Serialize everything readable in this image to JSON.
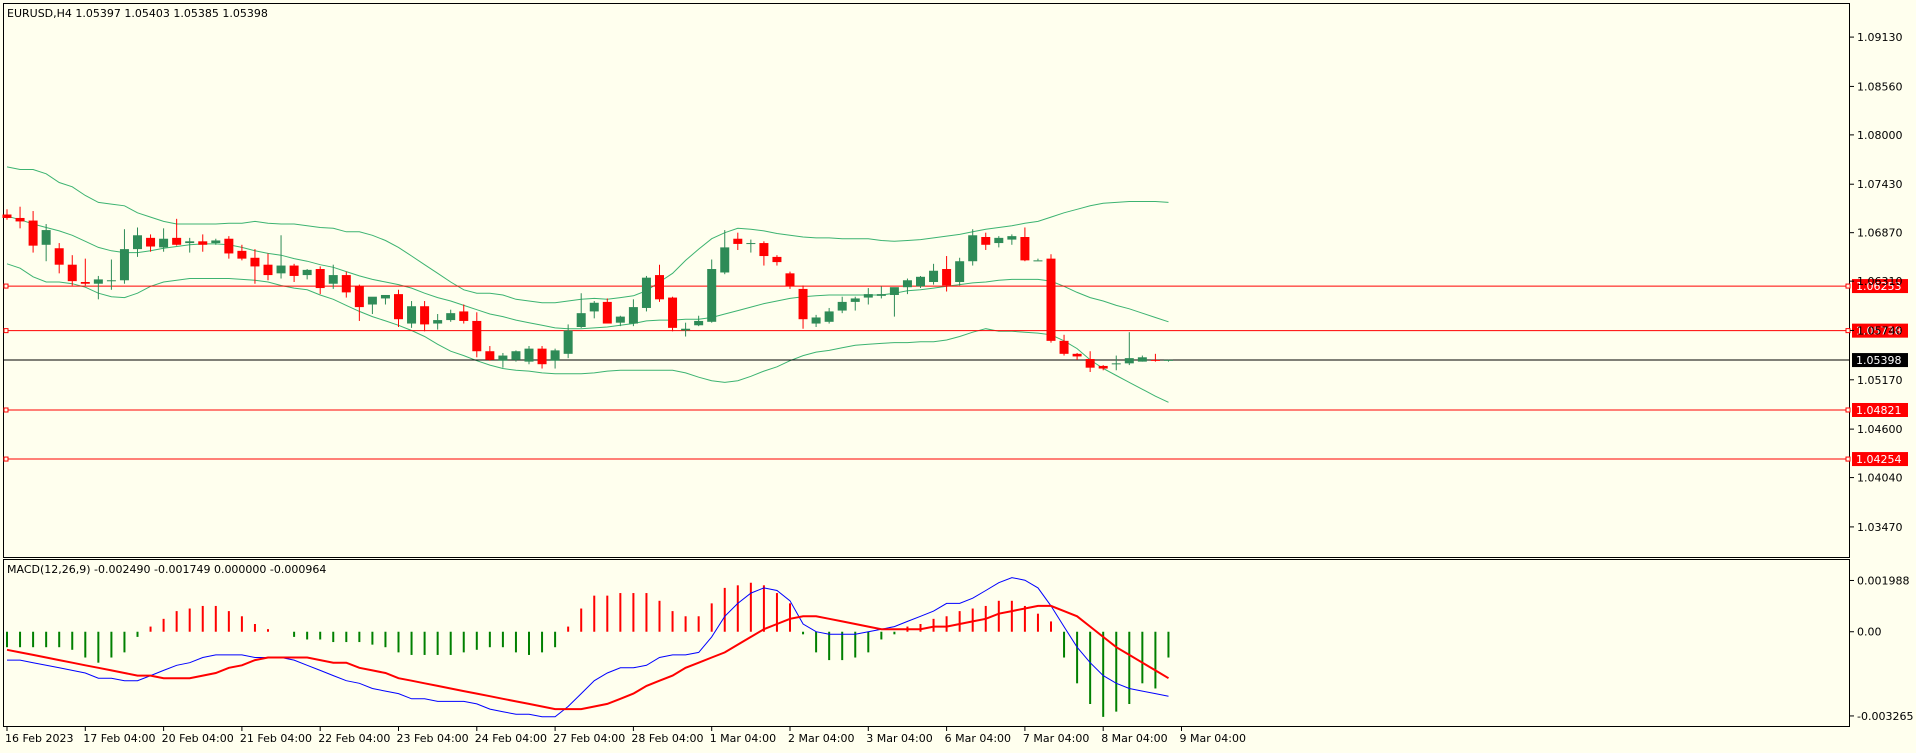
{
  "colors": {
    "background": "#ffffee",
    "frame": "#000000",
    "bull_candle": "#2e8b57",
    "bear_candle": "#ff0000",
    "bollinger": "#3cb371",
    "level_line": "#ff0000",
    "current_price_line": "#000000",
    "macd_line": "#0000ff",
    "signal_line": "#ff0000",
    "hist_pos": "#ff0000",
    "hist_neg": "#008000"
  },
  "chart_data": [
    {
      "type": "candlestick",
      "title": "EURUSD,H4  1.05397 1.05403 1.05385 1.05398",
      "ylim": [
        1.0318,
        1.0942
      ],
      "yticks": [
        "1.09130",
        "1.08560",
        "1.08000",
        "1.07430",
        "1.06870",
        "1.06310",
        "1.05740",
        "1.05170",
        "1.04600",
        "1.04040",
        "1.03470"
      ],
      "xtick_labels": [
        "16 Feb 2023",
        "17 Feb 04:00",
        "20 Feb 04:00",
        "21 Feb 04:00",
        "22 Feb 04:00",
        "23 Feb 04:00",
        "24 Feb 04:00",
        "27 Feb 04:00",
        "28 Feb 04:00",
        "1 Mar 04:00",
        "2 Mar 04:00",
        "3 Mar 04:00",
        "6 Mar 04:00",
        "7 Mar 04:00",
        "8 Mar 04:00",
        "9 Mar 04:00"
      ],
      "xtick_bar_index": [
        0,
        6,
        12,
        18,
        24,
        30,
        36,
        42,
        48,
        54,
        60,
        66,
        72,
        78,
        84,
        90
      ],
      "bars": [
        [
          1.0708,
          1.0714,
          1.0702,
          1.0704
        ],
        [
          1.0704,
          1.0717,
          1.0692,
          1.07
        ],
        [
          1.0701,
          1.0712,
          1.0664,
          1.0672
        ],
        [
          1.0673,
          1.0697,
          1.0654,
          1.069
        ],
        [
          1.0669,
          1.0675,
          1.064,
          1.065
        ],
        [
          1.065,
          1.0661,
          1.0626,
          1.0631
        ],
        [
          1.063,
          1.0657,
          1.0626,
          1.0628
        ],
        [
          1.0628,
          1.0637,
          1.061,
          1.0633
        ],
        [
          1.0631,
          1.0656,
          1.0621,
          1.0632
        ],
        [
          1.0632,
          1.0691,
          1.0628,
          1.0668
        ],
        [
          1.0668,
          1.0693,
          1.0659,
          1.0684
        ],
        [
          1.0681,
          1.0685,
          1.0665,
          1.0671
        ],
        [
          1.067,
          1.0692,
          1.0665,
          1.068
        ],
        [
          1.0681,
          1.0703,
          1.0672,
          1.0673
        ],
        [
          1.0675,
          1.0681,
          1.0664,
          1.0677
        ],
        [
          1.0677,
          1.0685,
          1.0665,
          1.0673
        ],
        [
          1.0675,
          1.068,
          1.0673,
          1.0678
        ],
        [
          1.068,
          1.0683,
          1.0657,
          1.0663
        ],
        [
          1.0666,
          1.0673,
          1.0655,
          1.0657
        ],
        [
          1.0658,
          1.0668,
          1.0628,
          1.0648
        ],
        [
          1.065,
          1.0663,
          1.0632,
          1.0638
        ],
        [
          1.064,
          1.0684,
          1.0634,
          1.0649
        ],
        [
          1.0649,
          1.0651,
          1.063,
          1.0637
        ],
        [
          1.0638,
          1.0645,
          1.0633,
          1.0644
        ],
        [
          1.0645,
          1.0648,
          1.0616,
          1.0623
        ],
        [
          1.0628,
          1.065,
          1.0622,
          1.0638
        ],
        [
          1.0638,
          1.0642,
          1.0612,
          1.0618
        ],
        [
          1.0625,
          1.0627,
          1.0585,
          1.0601
        ],
        [
          1.0604,
          1.061,
          1.0593,
          1.0613
        ],
        [
          1.0611,
          1.0614,
          1.0604,
          1.0615
        ],
        [
          1.0616,
          1.0621,
          1.0578,
          1.0587
        ],
        [
          1.0582,
          1.0608,
          1.0577,
          1.0602
        ],
        [
          1.0602,
          1.0608,
          1.0573,
          1.0581
        ],
        [
          1.0582,
          1.0593,
          1.0575,
          1.0586
        ],
        [
          1.0586,
          1.0598,
          1.0584,
          1.0594
        ],
        [
          1.0596,
          1.0604,
          1.0582,
          1.0585
        ],
        [
          1.0585,
          1.0595,
          1.0543,
          1.055
        ],
        [
          1.055,
          1.0556,
          1.0539,
          1.054
        ],
        [
          1.0539,
          1.0548,
          1.0531,
          1.0545
        ],
        [
          1.054,
          1.0551,
          1.0538,
          1.055
        ],
        [
          1.0538,
          1.0556,
          1.0535,
          1.0553
        ],
        [
          1.0553,
          1.0556,
          1.053,
          1.0535
        ],
        [
          1.0539,
          1.0553,
          1.053,
          1.0551
        ],
        [
          1.0547,
          1.0581,
          1.0542,
          1.0574
        ],
        [
          1.0578,
          1.0617,
          1.0577,
          1.0594
        ],
        [
          1.0596,
          1.0608,
          1.0588,
          1.0606
        ],
        [
          1.0607,
          1.0611,
          1.0583,
          1.0582
        ],
        [
          1.0583,
          1.0591,
          1.0579,
          1.059
        ],
        [
          1.0582,
          1.061,
          1.0579,
          1.0601
        ],
        [
          1.06,
          1.0637,
          1.0596,
          1.0635
        ],
        [
          1.0638,
          1.065,
          1.0607,
          1.061
        ],
        [
          1.0612,
          1.0613,
          1.0573,
          1.0577
        ],
        [
          1.0574,
          1.0583,
          1.0567,
          1.0576
        ],
        [
          1.058,
          1.0591,
          1.0579,
          1.0585
        ],
        [
          1.0584,
          1.0656,
          1.0583,
          1.0645
        ],
        [
          1.0641,
          1.069,
          1.0639,
          1.067
        ],
        [
          1.068,
          1.0687,
          1.0667,
          1.0674
        ],
        [
          1.0675,
          1.0679,
          1.0664,
          1.0675
        ],
        [
          1.0675,
          1.0677,
          1.0649,
          1.066
        ],
        [
          1.0659,
          1.0661,
          1.0649,
          1.0653
        ],
        [
          1.064,
          1.0642,
          1.0622,
          1.0625
        ],
        [
          1.0622,
          1.0626,
          1.0576,
          1.0587
        ],
        [
          1.0582,
          1.0592,
          1.0578,
          1.0589
        ],
        [
          1.0584,
          1.06,
          1.0582,
          1.0596
        ],
        [
          1.0597,
          1.0613,
          1.0594,
          1.0607
        ],
        [
          1.0607,
          1.0613,
          1.0597,
          1.0611
        ],
        [
          1.0612,
          1.0623,
          1.0604,
          1.0616
        ],
        [
          1.0614,
          1.0625,
          1.0611,
          1.0616
        ],
        [
          1.0615,
          1.0623,
          1.059,
          1.0624
        ],
        [
          1.0624,
          1.0634,
          1.0616,
          1.0632
        ],
        [
          1.0625,
          1.0637,
          1.0623,
          1.0636
        ],
        [
          1.063,
          1.0651,
          1.0627,
          1.0643
        ],
        [
          1.0645,
          1.066,
          1.0619,
          1.0626
        ],
        [
          1.063,
          1.0658,
          1.0626,
          1.0654
        ],
        [
          1.0654,
          1.0691,
          1.0649,
          1.0684
        ],
        [
          1.0682,
          1.0687,
          1.0667,
          1.0673
        ],
        [
          1.0675,
          1.0683,
          1.067,
          1.0681
        ],
        [
          1.0679,
          1.0685,
          1.0673,
          1.0683
        ],
        [
          1.0682,
          1.0693,
          1.0654,
          1.0655
        ],
        [
          1.0655,
          1.0657,
          1.0655,
          1.0655
        ],
        [
          1.0657,
          1.0662,
          1.056,
          1.0562
        ],
        [
          1.0562,
          1.0569,
          1.0545,
          1.0547
        ],
        [
          1.0547,
          1.0548,
          1.054,
          1.0544
        ],
        [
          1.0541,
          1.055,
          1.0526,
          1.0531
        ],
        [
          1.0533,
          1.0534,
          1.0528,
          1.053
        ],
        [
          1.0536,
          1.0545,
          1.0528,
          1.0536
        ],
        [
          1.0536,
          1.0572,
          1.0534,
          1.0542
        ],
        [
          1.0538,
          1.0545,
          1.0538,
          1.0543
        ],
        [
          1.054,
          1.0547,
          1.0538,
          1.0539
        ],
        [
          1.054,
          1.054,
          1.0538,
          1.054
        ]
      ],
      "bollinger": {
        "upper": [
          1.0763,
          1.076,
          1.076,
          1.0755,
          1.0745,
          1.074,
          1.073,
          1.0722,
          1.072,
          1.0718,
          1.071,
          1.0705,
          1.07,
          1.0697,
          1.0697,
          1.0697,
          1.0697,
          1.0698,
          1.0698,
          1.07,
          1.0698,
          1.0697,
          1.0697,
          1.0695,
          1.0693,
          1.0692,
          1.0688,
          1.0688,
          1.0684,
          1.0678,
          1.067,
          1.066,
          1.065,
          1.064,
          1.063,
          1.0621,
          1.0617,
          1.0617,
          1.0615,
          1.061,
          1.0608,
          1.0606,
          1.0606,
          1.0608,
          1.061,
          1.0611,
          1.061,
          1.0612,
          1.0614,
          1.062,
          1.063,
          1.064,
          1.0655,
          1.0668,
          1.068,
          1.0687,
          1.0692,
          1.0691,
          1.0689,
          1.0686,
          1.0684,
          1.0682,
          1.0681,
          1.0681,
          1.068,
          1.068,
          1.068,
          1.0678,
          1.0677,
          1.0678,
          1.0679,
          1.0681,
          1.0683,
          1.0685,
          1.0688,
          1.0691,
          1.0693,
          1.0695,
          1.0698,
          1.07,
          1.0705,
          1.071,
          1.0714,
          1.0718,
          1.0721,
          1.0722,
          1.0723,
          1.0723,
          1.0723,
          1.0722
        ],
        "middle": [
          1.0706,
          1.0702,
          1.0697,
          1.0693,
          1.0689,
          1.0684,
          1.0677,
          1.067,
          1.0666,
          1.0664,
          1.0664,
          1.0666,
          1.0669,
          1.0671,
          1.0673,
          1.0674,
          1.0674,
          1.0673,
          1.067,
          1.0666,
          1.0663,
          1.0661,
          1.0657,
          1.0654,
          1.065,
          1.0647,
          1.0642,
          1.0637,
          1.0633,
          1.063,
          1.0627,
          1.0623,
          1.0617,
          1.0612,
          1.0608,
          1.0603,
          1.0598,
          1.0593,
          1.059,
          1.0586,
          1.0583,
          1.058,
          1.0577,
          1.0576,
          1.0576,
          1.0577,
          1.0578,
          1.058,
          1.0582,
          1.0585,
          1.0586,
          1.0586,
          1.0587,
          1.0587,
          1.0589,
          1.0593,
          1.0597,
          1.0601,
          1.0605,
          1.0608,
          1.0611,
          1.0613,
          1.0614,
          1.0615,
          1.0615,
          1.0615,
          1.0615,
          1.0615,
          1.0617,
          1.062,
          1.0621,
          1.0623,
          1.0625,
          1.0627,
          1.0629,
          1.063,
          1.0632,
          1.0633,
          1.0633,
          1.0633,
          1.0631,
          1.0625,
          1.0618,
          1.0612,
          1.0608,
          1.0603,
          1.0599,
          1.0594,
          1.0589,
          1.0584
        ],
        "lower": [
          1.0651,
          1.0646,
          1.0636,
          1.063,
          1.063,
          1.0628,
          1.0624,
          1.0617,
          1.0613,
          1.0612,
          1.0617,
          1.0625,
          1.063,
          1.0632,
          1.0634,
          1.0634,
          1.0634,
          1.0634,
          1.0633,
          1.0632,
          1.063,
          1.0626,
          1.0623,
          1.0621,
          1.0615,
          1.061,
          1.0603,
          1.0596,
          1.059,
          1.0585,
          1.058,
          1.0574,
          1.0567,
          1.0558,
          1.055,
          1.0545,
          1.0539,
          1.0534,
          1.053,
          1.0528,
          1.0527,
          1.0525,
          1.0524,
          1.0524,
          1.0524,
          1.0525,
          1.0527,
          1.0528,
          1.0528,
          1.0528,
          1.0528,
          1.0528,
          1.0525,
          1.052,
          1.0516,
          1.0514,
          1.0516,
          1.0521,
          1.0527,
          1.0532,
          1.0539,
          1.0545,
          1.0549,
          1.0551,
          1.0554,
          1.0557,
          1.0558,
          1.0559,
          1.056,
          1.056,
          1.0561,
          1.0561,
          1.0563,
          1.0567,
          1.0572,
          1.0576,
          1.0573,
          1.0573,
          1.0572,
          1.0571,
          1.0569,
          1.0562,
          1.0553,
          1.054,
          1.053,
          1.0522,
          1.0514,
          1.0506,
          1.0498,
          1.0491
        ]
      },
      "levels": [
        1.06253,
        1.05738,
        1.04821,
        1.04254
      ],
      "level_labels": [
        "1.06253",
        "1.05738",
        "1.04821",
        "1.04254"
      ],
      "current_price": 1.05398,
      "current_price_label": "1.05398"
    },
    {
      "type": "macd",
      "title": "MACD(12,26,9) -0.002490 -0.001749 0.000000 -0.000964",
      "ylim": [
        -0.0035,
        0.0022
      ],
      "yticks": [
        "0.001988",
        "0.00",
        "-0.003265"
      ],
      "ytick_values": [
        0.001988,
        0.0,
        -0.003265
      ],
      "histogram": [
        -0.0006,
        -0.0006,
        -0.0006,
        -0.0006,
        -0.0006,
        -0.0007,
        -0.001,
        -0.0012,
        -0.001,
        -0.0008,
        -0.0002,
        0.0002,
        0.0005,
        0.0008,
        0.0009,
        0.001,
        0.001,
        0.0008,
        0.0006,
        0.0003,
        0.0001,
        0.0,
        -0.0002,
        -0.0003,
        -0.0003,
        -0.0004,
        -0.0004,
        -0.0004,
        -0.0005,
        -0.0006,
        -0.0008,
        -0.0009,
        -0.0009,
        -0.0009,
        -0.0009,
        -0.0008,
        -0.0007,
        -0.0006,
        -0.0006,
        -0.0008,
        -0.0009,
        -0.0008,
        -0.0006,
        0.0002,
        0.0009,
        0.0014,
        0.0014,
        0.0015,
        0.0015,
        0.0015,
        0.0012,
        0.0008,
        0.0006,
        0.0006,
        0.0011,
        0.0017,
        0.0018,
        0.0019,
        0.0018,
        0.0015,
        0.0011,
        -0.0001,
        -0.0008,
        -0.0011,
        -0.0011,
        -0.001,
        -0.0008,
        -0.0003,
        -0.0001,
        0.0002,
        0.0003,
        0.0005,
        0.0006,
        0.0008,
        0.0009,
        0.001,
        0.0012,
        0.0012,
        0.001,
        0.0007,
        0.0004,
        -0.001,
        -0.002,
        -0.0028,
        -0.0033,
        -0.0031,
        -0.0028,
        -0.002,
        -0.0022,
        -0.001
      ],
      "macd": [
        -0.0011,
        -0.0011,
        -0.0012,
        -0.0013,
        -0.0014,
        -0.0015,
        -0.0016,
        -0.0018,
        -0.0018,
        -0.0019,
        -0.0019,
        -0.0017,
        -0.0015,
        -0.0013,
        -0.0012,
        -0.001,
        -0.0009,
        -0.0009,
        -0.0009,
        -0.001,
        -0.001,
        -0.001,
        -0.0011,
        -0.0013,
        -0.0015,
        -0.0017,
        -0.0019,
        -0.002,
        -0.0022,
        -0.0023,
        -0.0024,
        -0.0026,
        -0.0026,
        -0.0027,
        -0.0027,
        -0.0027,
        -0.0028,
        -0.003,
        -0.0031,
        -0.0032,
        -0.0032,
        -0.0033,
        -0.0033,
        -0.0029,
        -0.0024,
        -0.0019,
        -0.0016,
        -0.0014,
        -0.0014,
        -0.0013,
        -0.001,
        -0.0009,
        -0.0009,
        -0.0008,
        -0.0002,
        0.0006,
        0.0011,
        0.0015,
        0.0017,
        0.0016,
        0.0012,
        0.0003,
        0.0,
        -0.0001,
        -0.0001,
        -0.0001,
        0.0,
        0.0001,
        0.0002,
        0.0004,
        0.0006,
        0.0008,
        0.0011,
        0.0011,
        0.0013,
        0.0016,
        0.0019,
        0.0021,
        0.002,
        0.0017,
        0.001,
        0.0002,
        -0.0006,
        -0.0012,
        -0.0017,
        -0.002,
        -0.0022,
        -0.0023,
        -0.0024,
        -0.0025
      ],
      "signal": [
        -0.0007,
        -0.0008,
        -0.0009,
        -0.001,
        -0.0011,
        -0.0012,
        -0.0013,
        -0.0014,
        -0.0015,
        -0.0016,
        -0.0017,
        -0.0017,
        -0.0018,
        -0.0018,
        -0.0018,
        -0.0017,
        -0.0016,
        -0.0014,
        -0.0013,
        -0.0011,
        -0.001,
        -0.001,
        -0.001,
        -0.001,
        -0.0011,
        -0.0012,
        -0.0012,
        -0.0014,
        -0.0015,
        -0.0016,
        -0.0018,
        -0.0019,
        -0.002,
        -0.0021,
        -0.0022,
        -0.0023,
        -0.0024,
        -0.0025,
        -0.0026,
        -0.0027,
        -0.0028,
        -0.0029,
        -0.003,
        -0.003,
        -0.003,
        -0.0029,
        -0.0028,
        -0.0026,
        -0.0024,
        -0.0021,
        -0.0019,
        -0.0017,
        -0.0014,
        -0.0012,
        -0.001,
        -0.0008,
        -0.0005,
        -0.0002,
        0.0001,
        0.0003,
        0.0005,
        0.0006,
        0.0006,
        0.0005,
        0.0004,
        0.0003,
        0.0002,
        0.0001,
        0.0001,
        0.0001,
        0.0001,
        0.0002,
        0.0002,
        0.0003,
        0.0004,
        0.0005,
        0.0007,
        0.0008,
        0.0009,
        0.001,
        0.001,
        0.0008,
        0.0006,
        0.0002,
        -0.0002,
        -0.0006,
        -0.0009,
        -0.0012,
        -0.0015,
        -0.0018
      ]
    }
  ]
}
